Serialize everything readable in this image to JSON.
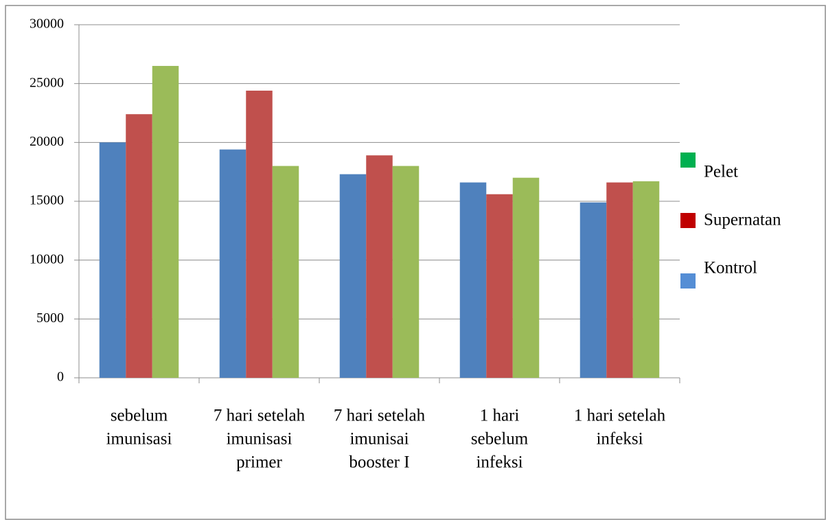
{
  "chart_data": {
    "type": "bar",
    "categories": [
      [
        "sebelum",
        "imunisasi"
      ],
      [
        "7 hari setelah",
        "imunisasi",
        "primer"
      ],
      [
        "7 hari setelah",
        "imunisai",
        "booster I"
      ],
      [
        "1 hari",
        "sebelum",
        "infeksi"
      ],
      [
        "1 hari setelah",
        "infeksi"
      ]
    ],
    "series": [
      {
        "name": "Kontrol",
        "color": "#4f81bd",
        "legend_color": "#558ed5",
        "values": [
          20000,
          19400,
          17300,
          16600,
          14900
        ]
      },
      {
        "name": "Supernatan",
        "color": "#c0504d",
        "legend_color": "#c00000",
        "values": [
          22400,
          24400,
          18900,
          15600,
          16600
        ]
      },
      {
        "name": "Pelet",
        "color": "#9bbb59",
        "legend_color": "#00b050",
        "values": [
          26500,
          18000,
          18000,
          17000,
          16700
        ]
      }
    ],
    "ylim": [
      0,
      30000
    ],
    "yticks": [
      0,
      5000,
      10000,
      15000,
      20000,
      25000,
      30000
    ],
    "grid": true,
    "legend": "right"
  }
}
